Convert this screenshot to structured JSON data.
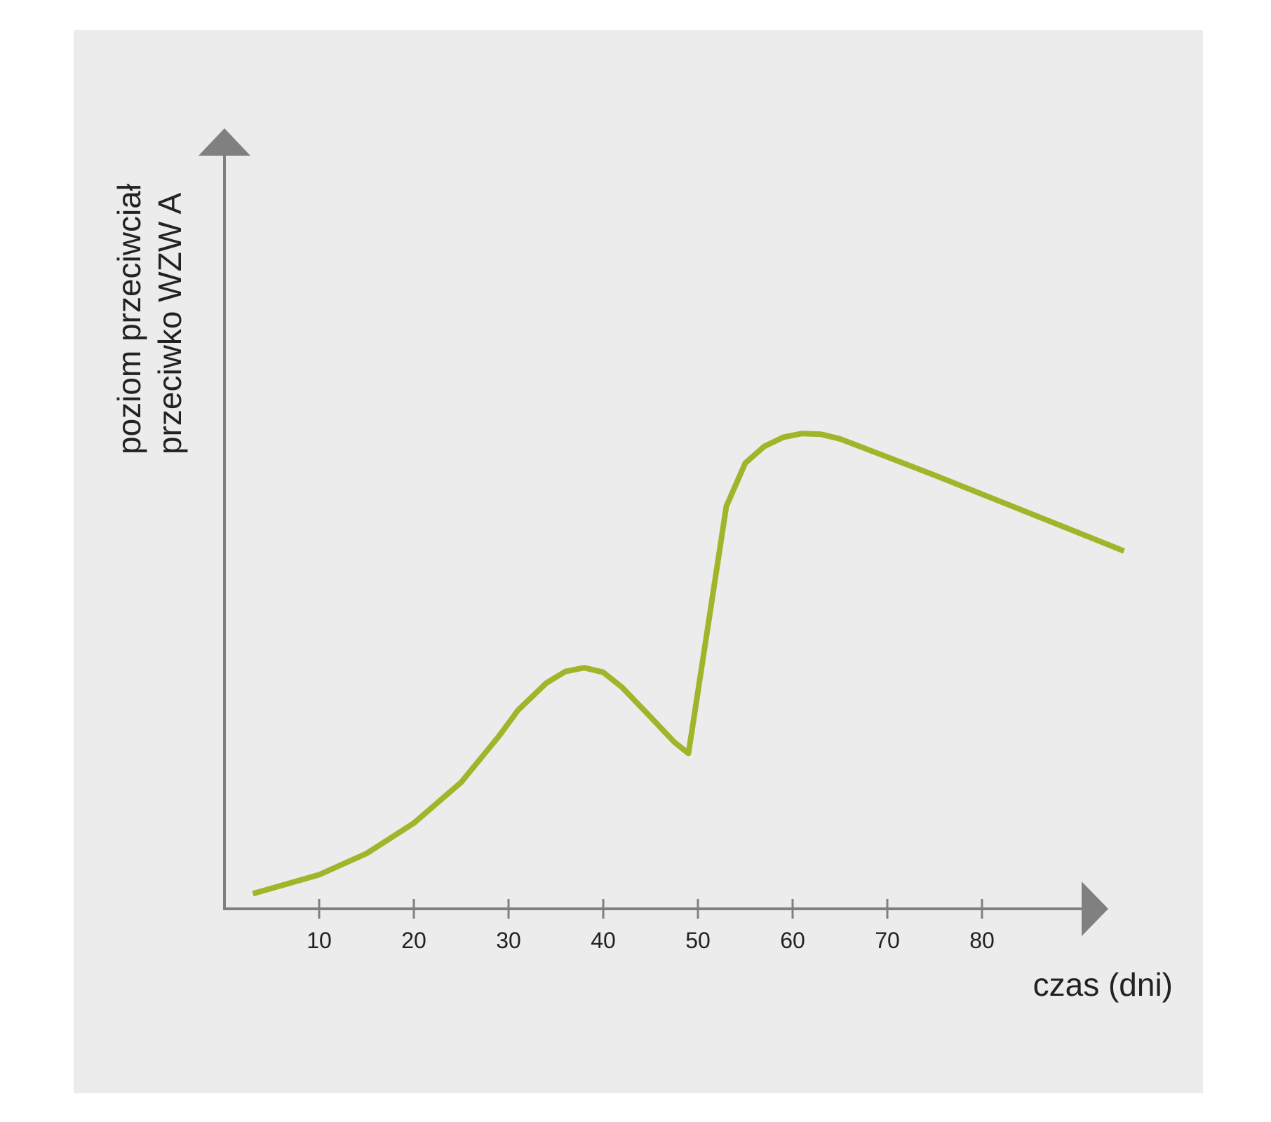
{
  "chart_data": {
    "type": "line",
    "title": "",
    "xlabel": "czas (dni)",
    "ylabel_lines": [
      "poziom przeciwciał",
      "przeciwko WZW A"
    ],
    "x_ticks": [
      10,
      20,
      30,
      40,
      50,
      60,
      70,
      80
    ],
    "x_tick_labels": [
      "10",
      "20",
      "30",
      "40",
      "50",
      "60",
      "70",
      "80"
    ],
    "xlim": [
      0,
      93
    ],
    "ylim": [
      0,
      1
    ],
    "y_ticks_shown": false,
    "grid": false,
    "legend": "none",
    "colors": {
      "background": "#ececec",
      "axis": "#808080",
      "line": "#a2b52a",
      "text": "#222222"
    },
    "series": [
      {
        "points": [
          [
            3,
            0.02
          ],
          [
            10,
            0.045
          ],
          [
            15,
            0.073
          ],
          [
            20,
            0.113
          ],
          [
            25,
            0.167
          ],
          [
            29,
            0.228
          ],
          [
            31,
            0.262
          ],
          [
            34,
            0.298
          ],
          [
            36,
            0.313
          ],
          [
            38,
            0.318
          ],
          [
            40,
            0.312
          ],
          [
            42,
            0.292
          ],
          [
            45,
            0.253
          ],
          [
            47.5,
            0.22
          ],
          [
            49,
            0.205
          ],
          [
            53,
            0.531
          ],
          [
            55,
            0.588
          ],
          [
            57,
            0.61
          ],
          [
            59,
            0.622
          ],
          [
            61,
            0.627
          ],
          [
            63,
            0.626
          ],
          [
            65,
            0.62
          ],
          [
            70,
            0.596
          ],
          [
            75,
            0.572
          ],
          [
            80,
            0.547
          ],
          [
            85,
            0.522
          ],
          [
            90,
            0.497
          ],
          [
            95,
            0.472
          ]
        ]
      }
    ]
  }
}
